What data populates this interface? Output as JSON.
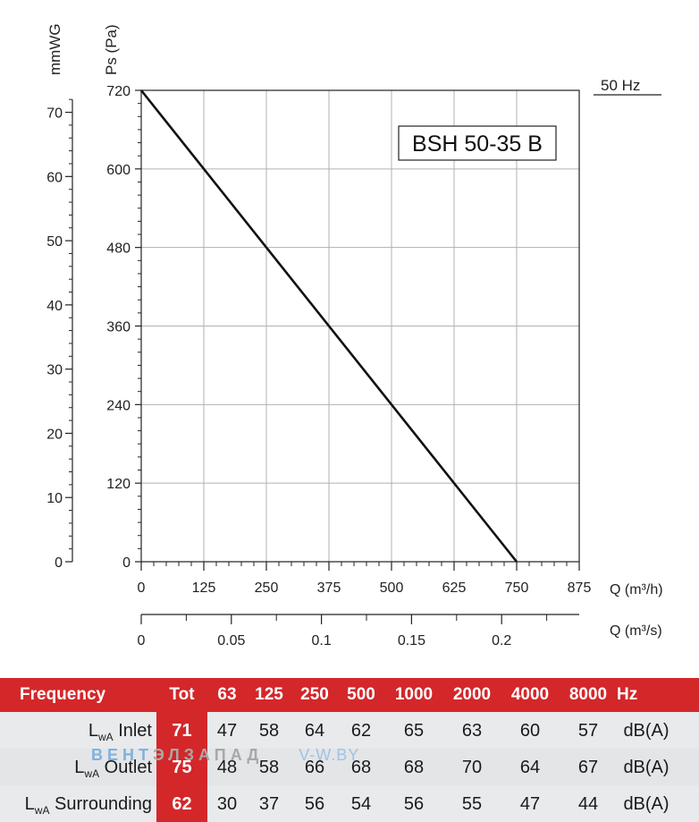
{
  "chart_data": {
    "type": "line",
    "model_label": "BSH 50-35 B",
    "frequency_label": "50 Hz",
    "y_left_label": "mmWG",
    "y_right_label": "Ps (Pa)",
    "x_label_h": "Q (m³/h)",
    "x_label_s": "Q (m³/s)",
    "xlim": [
      0,
      875
    ],
    "ylim": [
      0,
      720
    ],
    "x_ticks": [
      "0",
      "125",
      "250",
      "375",
      "500",
      "625",
      "750",
      "875"
    ],
    "x_tick_values": [
      0,
      125,
      250,
      375,
      500,
      625,
      750,
      875
    ],
    "y_ticks": [
      "0",
      "120",
      "240",
      "360",
      "480",
      "600",
      "720"
    ],
    "y_tick_values": [
      0,
      120,
      240,
      360,
      480,
      600,
      720
    ],
    "mmwg_ticks": [
      "0",
      "10",
      "20",
      "30",
      "40",
      "50",
      "60",
      "70"
    ],
    "mmwg_tick_values": [
      0,
      10,
      20,
      30,
      40,
      50,
      60,
      70
    ],
    "q_s_ticks": [
      "0",
      "0.05",
      "0.1",
      "0.15",
      "0.2"
    ],
    "q_s_tick_values": [
      0,
      0.05,
      0.1,
      0.15,
      0.2
    ],
    "grid": true,
    "series": [
      {
        "x": [
          0,
          750
        ],
        "y": [
          720,
          0
        ]
      }
    ]
  },
  "table": {
    "header": {
      "frequency": "Frequency",
      "tot": "Tot",
      "bands": [
        "63",
        "125",
        "250",
        "500",
        "1000",
        "2000",
        "4000",
        "8000"
      ],
      "unit": "Hz"
    },
    "rows": [
      {
        "prefix": "L",
        "sub": "wA",
        "label": "Inlet",
        "tot": "71",
        "values": [
          "47",
          "58",
          "64",
          "62",
          "65",
          "63",
          "60",
          "57"
        ],
        "unit": "dB(A)"
      },
      {
        "prefix": "L",
        "sub": "wA",
        "label": "Outlet",
        "tot": "75",
        "values": [
          "48",
          "58",
          "66",
          "68",
          "68",
          "70",
          "64",
          "67"
        ],
        "unit": "dB(A)"
      },
      {
        "prefix": "L",
        "sub": "wA",
        "label": "Surrounding",
        "tot": "62",
        "values": [
          "30",
          "37",
          "56",
          "54",
          "56",
          "55",
          "47",
          "44"
        ],
        "unit": "dB(A)"
      }
    ]
  },
  "watermark": {
    "part_a": "ВЕНТ",
    "part_b": "ЭЛЗАПАД",
    "site": "V-W.BY"
  },
  "colors": {
    "header": "#d3272a",
    "row_bg": "#e9eaec",
    "line": "#111111",
    "grid": "#b0b0b0"
  }
}
